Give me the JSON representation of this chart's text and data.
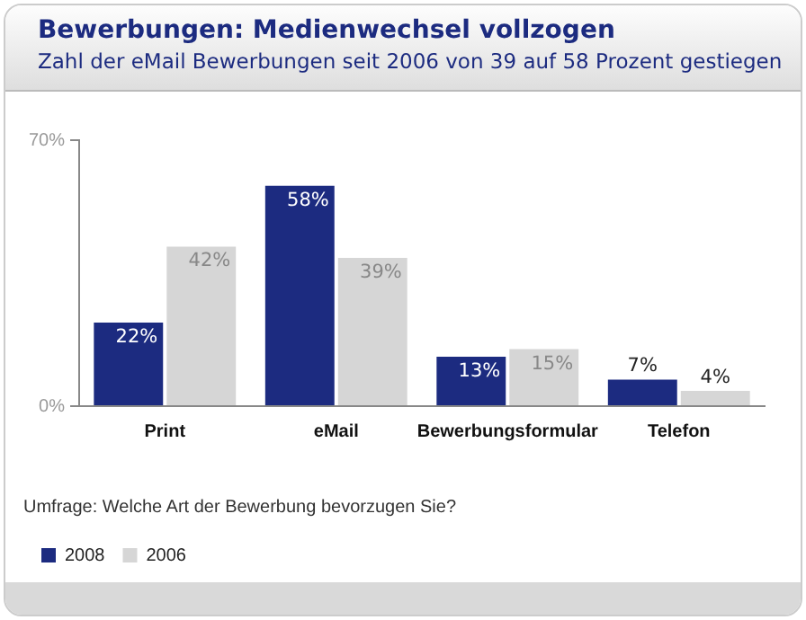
{
  "chart_data": {
    "type": "bar",
    "title": "Bewerbungen: Medienwechsel vollzogen",
    "subtitle": "Zahl der eMail Bewerbungen seit 2006 von 39 auf 58 Prozent gestiegen",
    "categories": [
      "Print",
      "eMail",
      "Bewerbungsformular",
      "Telefon"
    ],
    "series": [
      {
        "name": "2008",
        "color": "#1c2b80",
        "values": [
          22,
          58,
          13,
          7
        ],
        "value_labels": [
          "22%",
          "58%",
          "13%",
          "7%"
        ]
      },
      {
        "name": "2006",
        "color": "#d6d6d6",
        "values": [
          42,
          39,
          15,
          4
        ],
        "value_labels": [
          "42%",
          "39%",
          "15%",
          "4%"
        ]
      }
    ],
    "ylim": [
      0,
      70
    ],
    "yticks": [
      {
        "value": 0,
        "label": "0%"
      },
      {
        "value": 70,
        "label": "70%"
      }
    ],
    "grid": false,
    "legend": "bottom left",
    "annotations": [
      "Umfrage: Welche Art der Bewerbung bevorzugen Sie?"
    ]
  }
}
